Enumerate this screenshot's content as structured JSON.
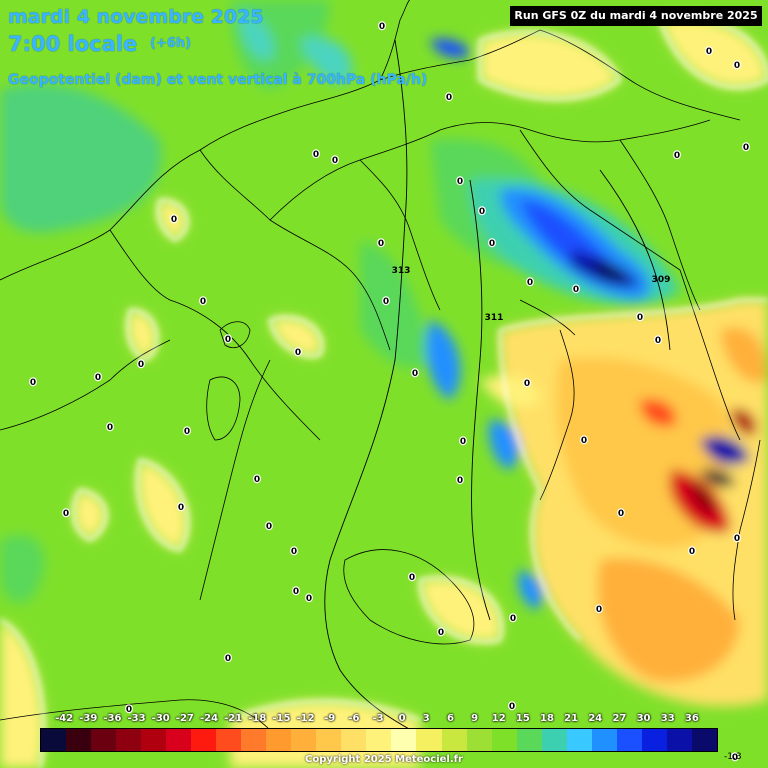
{
  "header": {
    "date": "mardi 4 novembre 2025",
    "time": "7:00 locale",
    "offset": "(+6h)",
    "parameter": "Geopotentiel (dam) et vent vertical à 700hPa (hPa/h)"
  },
  "run_info": "Run GFS 0Z du mardi 4 novembre 2025",
  "legend": {
    "ticks": [
      "-42",
      "-39",
      "-36",
      "-33",
      "-30",
      "-27",
      "-24",
      "-21",
      "-18",
      "-15",
      "-12",
      "-9",
      "-6",
      "-3",
      "0",
      "3",
      "6",
      "9",
      "12",
      "15",
      "18",
      "21",
      "24",
      "27",
      "30",
      "33",
      "36"
    ],
    "colors": [
      "#0a0a3a",
      "#3b0010",
      "#6b0010",
      "#8e0010",
      "#b00010",
      "#d8001a",
      "#ff1a10",
      "#ff4c1e",
      "#ff7a2a",
      "#ff9a2e",
      "#ffb03a",
      "#ffc84a",
      "#ffe066",
      "#fff27a",
      "#ffffb0",
      "#f4f060",
      "#c8e840",
      "#9ce035",
      "#7fe02a",
      "#5ad85a",
      "#3cd0b0",
      "#39c8ff",
      "#2090ff",
      "#1a50ff",
      "#0a20e0",
      "#0a10a8",
      "#0a0a6a"
    ]
  },
  "copyright": "Copyright 2025 Meteociel.fr",
  "corner_value": "-1.3",
  "geopotential_labels": [
    "313",
    "311",
    "309"
  ],
  "zero_labels": [
    "0"
  ],
  "colors": {
    "title": "#39b6ff",
    "background": "#7fe02a"
  }
}
